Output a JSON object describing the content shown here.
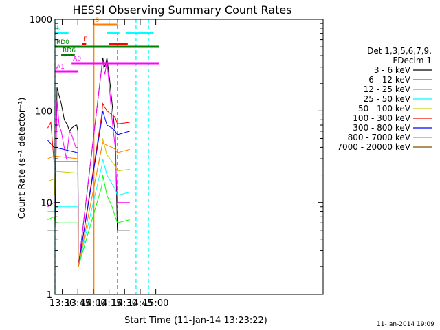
{
  "chart_data": {
    "type": "line",
    "title": "HESSI Observing Summary Count Rates",
    "xlabel": "Start Time (11-Jan-14 13:23:22)",
    "ylabel": "Count Rate (s⁻¹ detector⁻¹)",
    "yscale": "log",
    "ylim": [
      1,
      1000
    ],
    "xlim_min": [
      0,
      258
    ],
    "xticks": [
      {
        "min": 7,
        "label": "13:30"
      },
      {
        "min": 22,
        "label": "13:45"
      },
      {
        "min": 37,
        "label": "14:00"
      },
      {
        "min": 52,
        "label": "14:15"
      },
      {
        "min": 67,
        "label": "14:30"
      },
      {
        "min": 82,
        "label": "14:45"
      },
      {
        "min": 97,
        "label": "15:00"
      }
    ],
    "yticks": [
      {
        "value": 1,
        "label": "1"
      },
      {
        "value": 10,
        "label": "10"
      },
      {
        "value": 100,
        "label": "100"
      },
      {
        "value": 1000,
        "label": "1000"
      }
    ],
    "legend": {
      "header": [
        "Det 1,3,5,6,7,9,",
        "FDecim 1"
      ],
      "placement": "right"
    },
    "series": [
      {
        "name": "3 - 6 keV",
        "color": "#000000",
        "points": [
          [
            -7,
            5
          ],
          [
            -1,
            5
          ],
          [
            -0.5,
            5
          ],
          [
            0,
            5
          ],
          [
            2,
            180
          ],
          [
            6,
            120
          ],
          [
            9,
            80
          ],
          [
            12,
            70
          ],
          [
            14,
            60
          ],
          [
            16,
            65
          ],
          [
            20,
            70
          ],
          [
            21,
            70
          ],
          [
            22,
            60
          ],
          [
            22.5,
            2
          ],
          [
            45,
            300
          ],
          [
            46,
            380
          ],
          [
            48,
            300
          ],
          [
            50,
            380
          ],
          [
            53,
            200
          ],
          [
            55,
            120
          ],
          [
            57,
            70
          ],
          [
            58,
            60
          ],
          [
            60,
            5
          ],
          [
            72,
            5
          ]
        ]
      },
      {
        "name": "6 - 12 keV",
        "color": "#ff00ff",
        "points": [
          [
            -7,
            9
          ],
          [
            -1,
            10
          ],
          [
            -0.5,
            10
          ],
          [
            0,
            10
          ],
          [
            2,
            130
          ],
          [
            4,
            70
          ],
          [
            6,
            60
          ],
          [
            8,
            45
          ],
          [
            11,
            30
          ],
          [
            14,
            60
          ],
          [
            16,
            55
          ],
          [
            20,
            40
          ],
          [
            22,
            40
          ],
          [
            22.5,
            2
          ],
          [
            45,
            300
          ],
          [
            46,
            350
          ],
          [
            48,
            250
          ],
          [
            50,
            350
          ],
          [
            53,
            150
          ],
          [
            55,
            80
          ],
          [
            57,
            50
          ],
          [
            58,
            40
          ],
          [
            60,
            10
          ],
          [
            72,
            10
          ]
        ]
      },
      {
        "name": "12 - 25 keV",
        "color": "#00ff00",
        "points": [
          [
            -7,
            6.5
          ],
          [
            -1,
            7
          ],
          [
            -0.5,
            7
          ],
          [
            0,
            6
          ],
          [
            22,
            6
          ],
          [
            22.5,
            2
          ],
          [
            45,
            15
          ],
          [
            46,
            20
          ],
          [
            50,
            12
          ],
          [
            55,
            9
          ],
          [
            58,
            7
          ],
          [
            60,
            6
          ],
          [
            72,
            6.5
          ]
        ]
      },
      {
        "name": "25 - 50 keV",
        "color": "#00ffff",
        "points": [
          [
            -7,
            8
          ],
          [
            -1,
            8
          ],
          [
            -0.5,
            8
          ],
          [
            0,
            9
          ],
          [
            22,
            9
          ],
          [
            22.5,
            2
          ],
          [
            45,
            25
          ],
          [
            46,
            30
          ],
          [
            50,
            20
          ],
          [
            55,
            16
          ],
          [
            58,
            14
          ],
          [
            60,
            12
          ],
          [
            72,
            13
          ]
        ]
      },
      {
        "name": "50 - 100 keV",
        "color": "#cccc00",
        "points": [
          [
            -7,
            17
          ],
          [
            -1,
            18
          ],
          [
            -0.5,
            12
          ],
          [
            0,
            22
          ],
          [
            22,
            21
          ],
          [
            22.5,
            2
          ],
          [
            45,
            40
          ],
          [
            46,
            50
          ],
          [
            50,
            33
          ],
          [
            55,
            28
          ],
          [
            58,
            25
          ],
          [
            60,
            22
          ],
          [
            72,
            23
          ]
        ]
      },
      {
        "name": "100 - 300 keV",
        "color": "#ff0000",
        "points": [
          [
            -7,
            65
          ],
          [
            -4,
            75
          ],
          [
            -1,
            28
          ],
          [
            -0.5,
            28
          ],
          [
            0,
            28
          ],
          [
            22,
            28
          ],
          [
            22.5,
            2
          ],
          [
            45,
            90
          ],
          [
            46,
            120
          ],
          [
            50,
            100
          ],
          [
            55,
            90
          ],
          [
            58,
            85
          ],
          [
            60,
            72
          ],
          [
            72,
            75
          ]
        ]
      },
      {
        "name": "300 - 800 keV",
        "color": "#0000ff",
        "points": [
          [
            -7,
            48
          ],
          [
            -1,
            40
          ],
          [
            -0.5,
            40
          ],
          [
            0,
            40
          ],
          [
            22,
            35
          ],
          [
            22.5,
            2
          ],
          [
            45,
            80
          ],
          [
            46,
            100
          ],
          [
            50,
            70
          ],
          [
            55,
            65
          ],
          [
            58,
            60
          ],
          [
            60,
            55
          ],
          [
            72,
            60
          ]
        ]
      },
      {
        "name": "800 - 7000 keV",
        "color": "#ff7f00",
        "points": [
          [
            -7,
            30
          ],
          [
            -1,
            32
          ],
          [
            -0.5,
            32
          ],
          [
            0,
            32
          ],
          [
            22,
            30
          ],
          [
            22.5,
            2
          ],
          [
            45,
            40
          ],
          [
            46,
            45
          ],
          [
            50,
            42
          ],
          [
            55,
            40
          ],
          [
            58,
            38
          ],
          [
            60,
            35
          ],
          [
            72,
            38
          ]
        ]
      },
      {
        "name": "7000 - 20000 keV",
        "color": "#7f4f00",
        "points": []
      }
    ],
    "vlines": [
      {
        "min": 0,
        "color": "#00ffff",
        "dash": true
      },
      {
        "min": 37.5,
        "color": "#ff7f00",
        "dash": false
      },
      {
        "min": 60,
        "color": "#ff7f00",
        "dash": true
      },
      {
        "min": 78,
        "color": "#00ffff",
        "dash": true
      },
      {
        "min": 90,
        "color": "#00ffff",
        "dash": true
      }
    ],
    "flag_bars": [
      {
        "label": "N",
        "color": "#00ffff",
        "y_frac": 0.95,
        "segments": [
          [
            0,
            13
          ],
          [
            50,
            62
          ],
          [
            68,
            95
          ]
        ]
      },
      {
        "label": "F",
        "color": "#ff0000",
        "y_frac": 0.91,
        "segments": [
          [
            26,
            30
          ],
          [
            52,
            70
          ]
        ]
      },
      {
        "label": "S",
        "color": "#ff7f00",
        "y_frac": 0.98,
        "segments": [
          [
            37.5,
            60
          ]
        ]
      },
      {
        "label": "RD0",
        "color": "#007f00",
        "y_frac": 0.9,
        "segments": [
          [
            0,
            100
          ]
        ]
      },
      {
        "label": "RD6",
        "color": "#007f00",
        "y_frac": 0.87,
        "segments": [
          [
            6,
            19
          ]
        ]
      },
      {
        "label": "A0",
        "color": "#ff00ff",
        "y_frac": 0.84,
        "segments": [
          [
            16,
            100
          ]
        ]
      },
      {
        "label": "A1",
        "color": "#ff00ff",
        "y_frac": 0.81,
        "segments": [
          [
            0,
            22
          ]
        ]
      }
    ]
  },
  "footer_timestamp": "11-Jan-2014 19:09"
}
